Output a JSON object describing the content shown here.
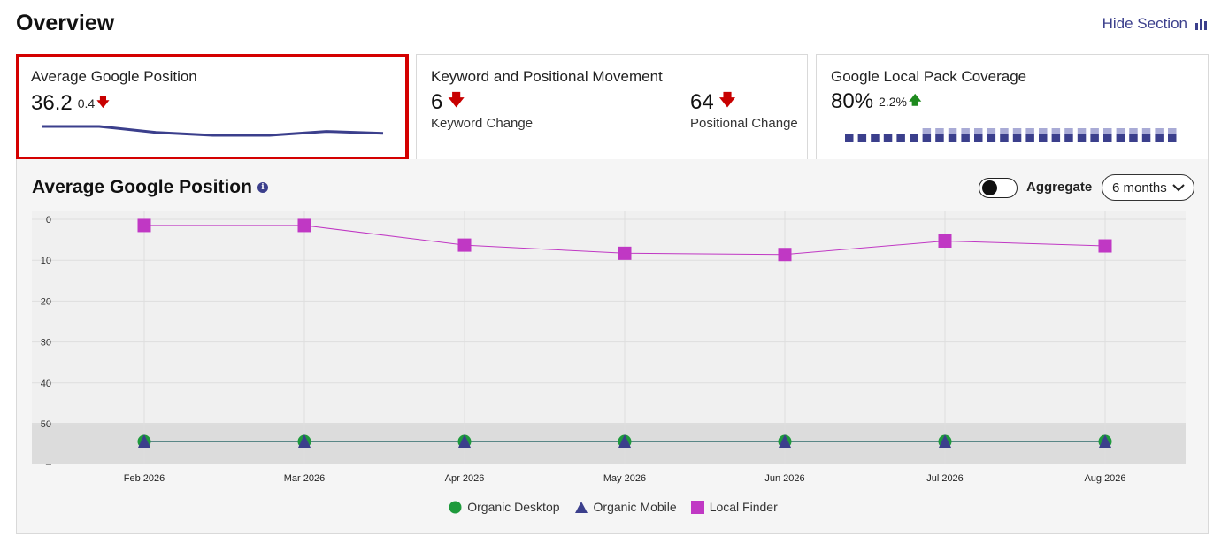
{
  "header": {
    "title": "Overview",
    "hide_label": "Hide Section"
  },
  "cards": {
    "avg_position": {
      "title": "Average Google Position",
      "value": "36.2",
      "delta": "0.4",
      "trend": [
        36.0,
        36.0,
        36.6,
        36.9,
        36.9,
        36.5,
        36.7
      ]
    },
    "movement": {
      "title": "Keyword and Positional Movement",
      "keyword_value": "6",
      "keyword_label": "Keyword Change",
      "positional_value": "64",
      "positional_label": "Positional Change"
    },
    "local_pack": {
      "title": "Google Local Pack Coverage",
      "value": "80%",
      "delta": "2.2%",
      "bars": [
        0,
        0,
        0,
        0,
        0,
        0,
        1,
        1,
        1,
        1,
        1,
        1,
        1,
        1,
        1,
        1,
        1,
        1,
        1,
        1,
        1,
        1,
        1,
        1,
        1,
        1
      ]
    }
  },
  "panel": {
    "title": "Average Google Position",
    "aggregate_label": "Aggregate",
    "aggregate_on": false,
    "range_label": "6 months"
  },
  "colors": {
    "accent": "#3b3f8c",
    "desktop": "#1e9a3c",
    "mobile": "#3b3f8c",
    "local": "#c038c4",
    "alert": "#d40000"
  },
  "chart_data": {
    "type": "line",
    "title": "Average Google Position",
    "categories": [
      "Feb 2026",
      "Mar 2026",
      "Apr 2026",
      "May 2026",
      "Jun 2026",
      "Jul 2026",
      "Aug 2026"
    ],
    "y_ticks": [
      "0",
      "10",
      "20",
      "30",
      "40",
      "50",
      "–"
    ],
    "ylim": [
      0,
      60
    ],
    "y_inverted": true,
    "series": [
      {
        "name": "Organic Desktop",
        "marker": "circle",
        "values": [
          null,
          null,
          null,
          null,
          null,
          null,
          null
        ]
      },
      {
        "name": "Organic Mobile",
        "marker": "triangle",
        "values": [
          null,
          null,
          null,
          null,
          null,
          null,
          null
        ]
      },
      {
        "name": "Local Finder",
        "marker": "square",
        "values": [
          1.5,
          1.5,
          6.3,
          8.3,
          8.6,
          5.3,
          6.5
        ]
      }
    ],
    "no_rank_band": "> 50",
    "grid": true,
    "legend_position": "bottom"
  }
}
